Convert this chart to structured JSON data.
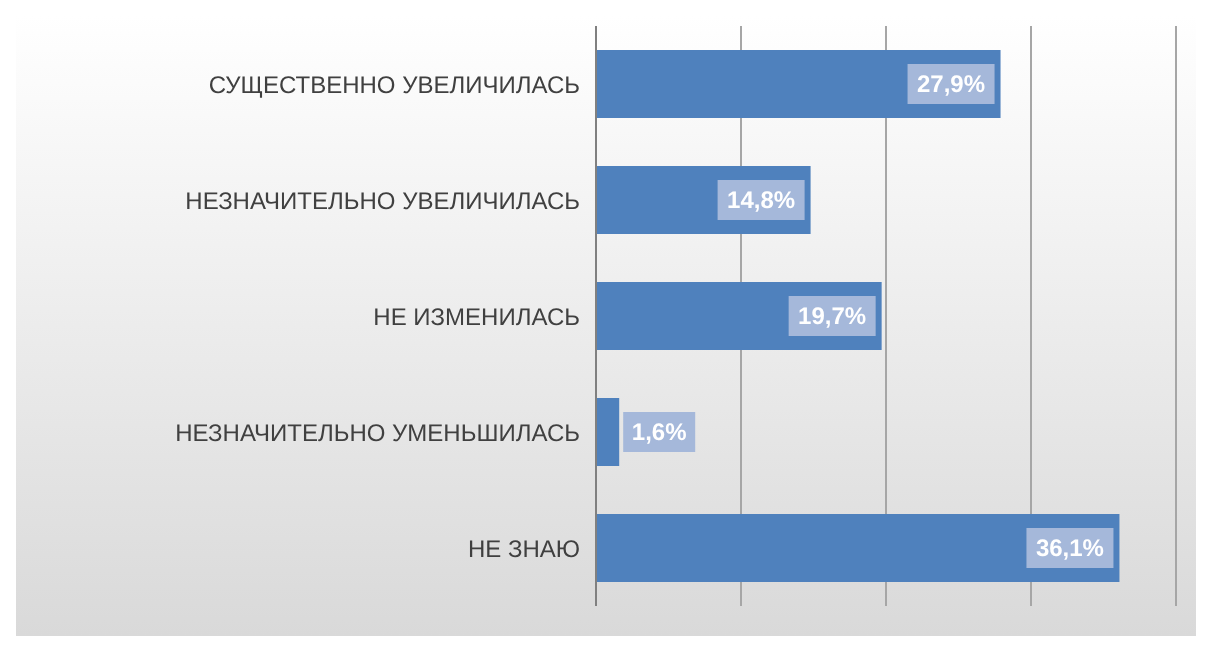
{
  "chart_data": {
    "type": "bar",
    "orientation": "horizontal",
    "categories": [
      "СУЩЕСТВЕННО УВЕЛИЧИЛАСЬ",
      "НЕЗНАЧИТЕЛЬНО УВЕЛИЧИЛАСЬ",
      "НЕ ИЗМЕНИЛАСЬ",
      "НЕЗНАЧИТЕЛЬНО УМЕНЬШИЛАСЬ",
      "НЕ ЗНАЮ"
    ],
    "values": [
      27.9,
      14.8,
      19.7,
      1.6,
      36.1
    ],
    "value_labels": [
      "27,9%",
      "14,8%",
      "19,7%",
      "1,6%",
      "36,1%"
    ],
    "color": "#4f81bd",
    "xlim": [
      0,
      40
    ],
    "xticks": [
      {
        "value": 0,
        "label": null
      },
      {
        "value": 10,
        "label": null
      },
      {
        "value": 20,
        "label": null
      },
      {
        "value": 30,
        "label": null
      },
      {
        "value": 40,
        "label": null
      }
    ],
    "tick_labels": "y",
    "grid": "x"
  }
}
